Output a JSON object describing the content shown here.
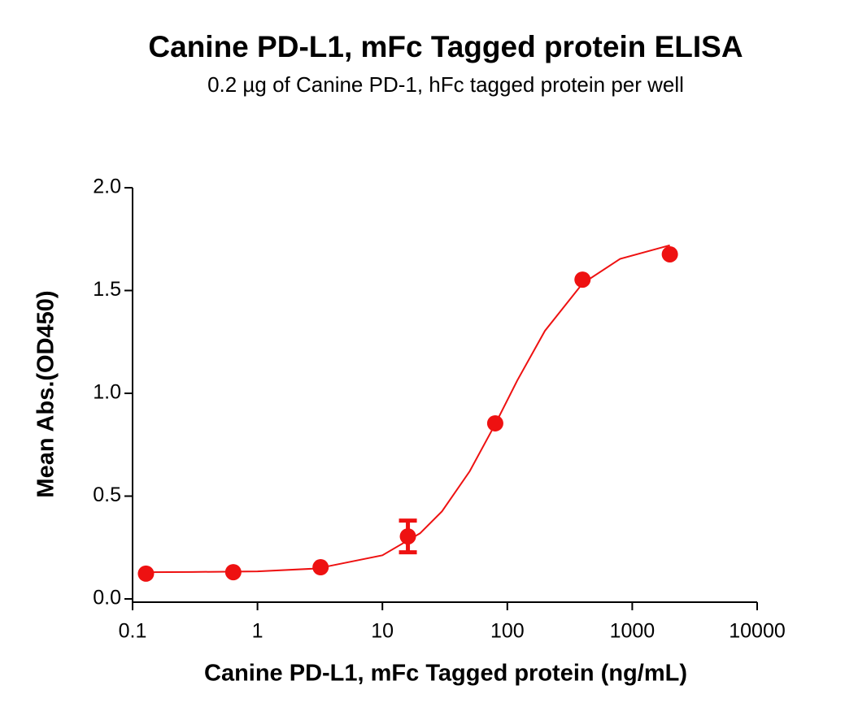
{
  "chart_data": {
    "type": "scatter",
    "title": "Canine PD-L1, mFc Tagged protein ELISA",
    "subtitle": "0.2 µg of Canine PD-1, hFc tagged protein per well",
    "xlabel": "Canine PD-L1, mFc Tagged protein (ng/mL)",
    "ylabel": "Mean Abs.(OD450)",
    "xscale": "log",
    "xlim": [
      0.1,
      10000
    ],
    "xticks": [
      0.1,
      1,
      10,
      100,
      1000,
      10000
    ],
    "ylim": [
      0,
      2
    ],
    "yticks": [
      {
        "value": 0,
        "label": "0.0"
      },
      0.5,
      {
        "value": 1,
        "label": "1.0"
      },
      1.5,
      {
        "value": 2,
        "label": "2.0"
      }
    ],
    "color": "#ee1111",
    "series": [
      {
        "x": [
          0.128,
          0.64,
          3.2,
          16,
          80,
          400,
          2000
        ],
        "values": [
          0.123,
          0.13,
          0.154,
          0.304,
          0.854,
          1.553,
          1.676
        ],
        "errors": [
          null,
          null,
          null,
          0.077,
          null,
          null,
          null
        ]
      }
    ],
    "fit": {
      "x": [
        0.128,
        0.3,
        1,
        3,
        10,
        20,
        30,
        50,
        80,
        120,
        200,
        400,
        800,
        2000
      ],
      "values": [
        0.13,
        0.131,
        0.134,
        0.148,
        0.212,
        0.319,
        0.426,
        0.621,
        0.85,
        1.062,
        1.304,
        1.534,
        1.654,
        1.72
      ]
    }
  }
}
